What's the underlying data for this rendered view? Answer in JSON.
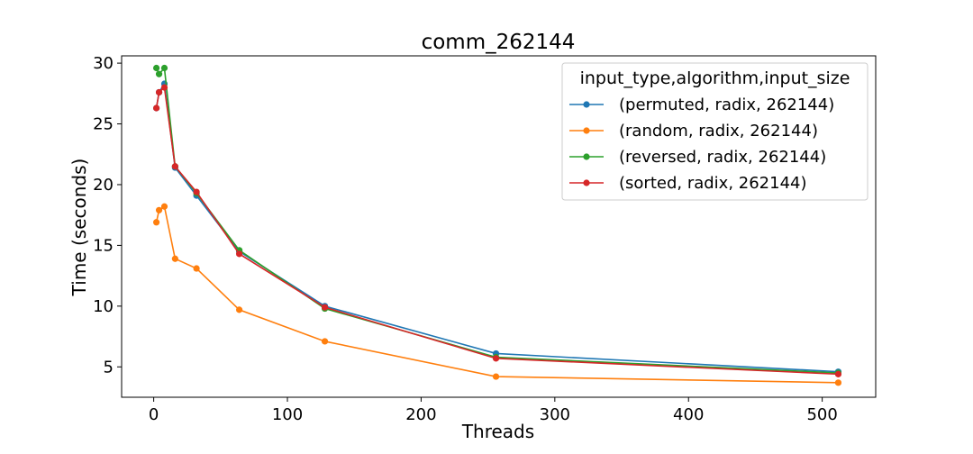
{
  "chart_data": {
    "type": "line",
    "title": "comm_262144",
    "xlabel": "Threads",
    "ylabel": "Time (seconds)",
    "xlim": [
      -24,
      540
    ],
    "ylim": [
      2.5,
      30.6
    ],
    "xticks": [
      0,
      100,
      200,
      300,
      400,
      500
    ],
    "yticks": [
      5,
      10,
      15,
      20,
      25,
      30
    ],
    "grid": false,
    "legend": {
      "title": "input_type,algorithm,input_size",
      "placement": "top-right"
    },
    "x": [
      2,
      4,
      8,
      16,
      32,
      64,
      128,
      256,
      512
    ],
    "series": [
      {
        "name": "(permuted, radix, 262144)",
        "color": "#1f77b4",
        "values": [
          26.3,
          27.6,
          28.3,
          21.4,
          19.1,
          14.5,
          10.0,
          6.1,
          4.6
        ]
      },
      {
        "name": "(random, radix, 262144)",
        "color": "#ff7f0e",
        "values": [
          16.9,
          17.9,
          18.2,
          13.9,
          13.1,
          9.7,
          7.1,
          4.2,
          3.7
        ]
      },
      {
        "name": "(reversed, radix, 262144)",
        "color": "#2ca02c",
        "values": [
          29.6,
          29.1,
          29.6,
          21.5,
          19.3,
          14.6,
          9.8,
          5.8,
          4.5
        ]
      },
      {
        "name": "(sorted, radix, 262144)",
        "color": "#d62728",
        "values": [
          26.3,
          27.6,
          28.0,
          21.5,
          19.4,
          14.3,
          9.9,
          5.7,
          4.4
        ]
      }
    ]
  }
}
